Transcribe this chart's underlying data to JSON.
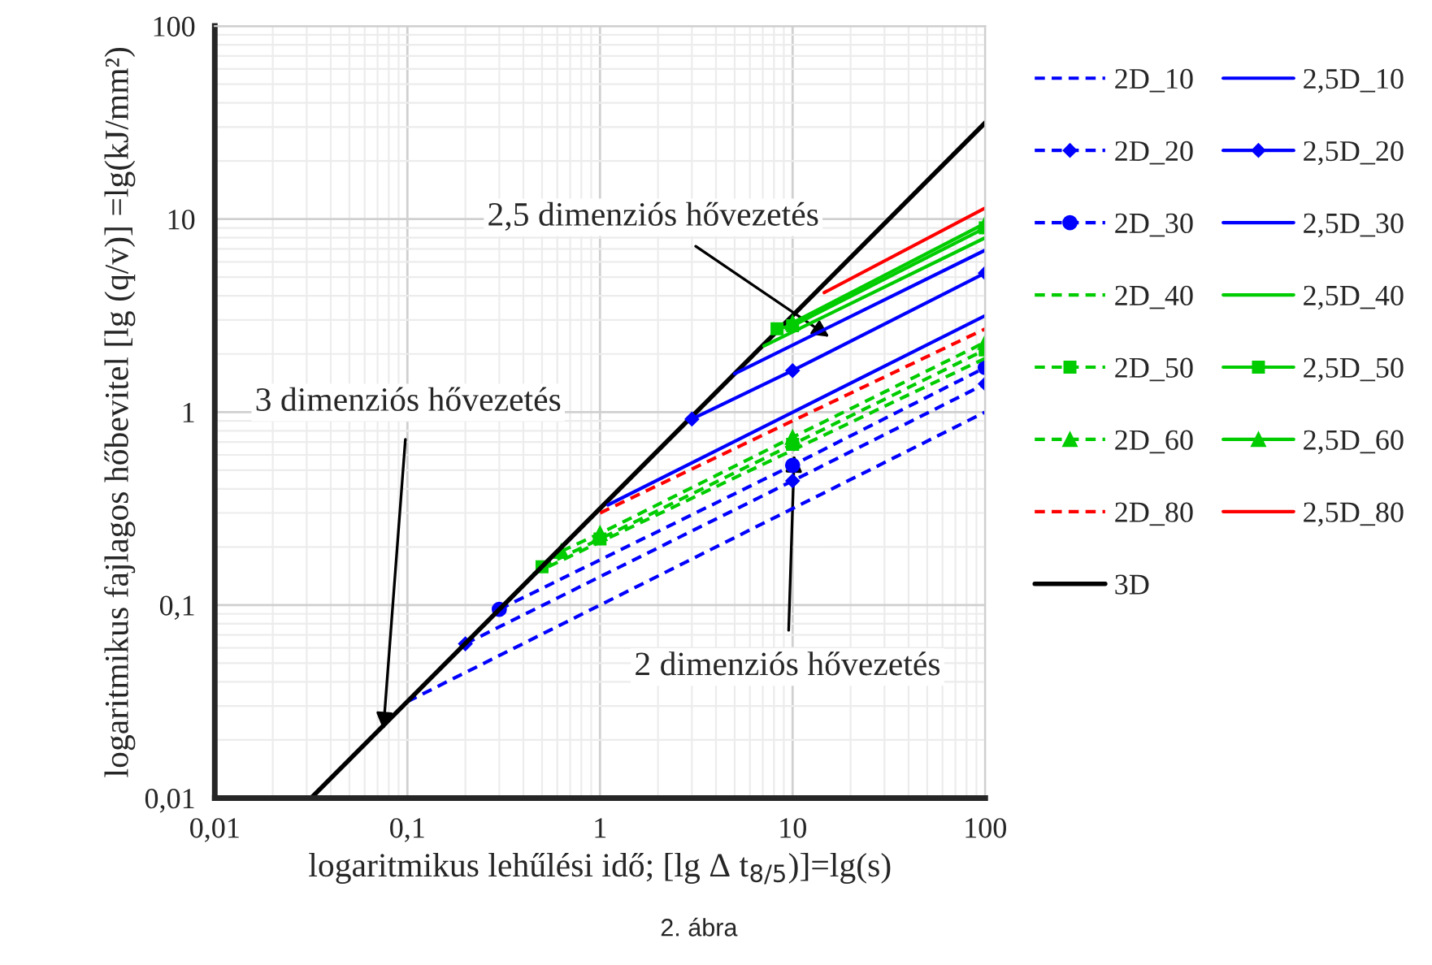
{
  "chart_data": {
    "type": "line",
    "xlabel": "logaritmikus lehűlési idő; [lg Δ t$_{8/5}$)]=lg(s)",
    "ylabel": "logaritmikus fajlagos hőbevitel [lg (q/v)] =lg(kJ/mm²)",
    "log": "xy",
    "grid": true,
    "legend": "right",
    "xlim": [
      0.01,
      100
    ],
    "ylim": [
      0.01,
      100
    ],
    "xticks": [
      {
        "value": 0.01,
        "label": "0,01"
      },
      {
        "value": 0.1,
        "label": "0,1"
      },
      1,
      10,
      100
    ],
    "yticks": [
      {
        "value": 0.01,
        "label": "0,01"
      },
      {
        "value": 0.1,
        "label": "0,1"
      },
      1,
      10,
      100
    ],
    "series": [
      {
        "name": "2D_10",
        "color": "#0000ff",
        "line_style": "dashed",
        "marker": "none",
        "x": [
          0.1,
          100
        ],
        "values": [
          0.0316,
          1.0
        ]
      },
      {
        "name": "2D_20",
        "color": "#0000ff",
        "line_style": "dashed",
        "marker": "diamond",
        "x": [
          0.2,
          10,
          100
        ],
        "values": [
          0.063,
          0.44,
          1.4
        ]
      },
      {
        "name": "2D_30",
        "color": "#0000ff",
        "line_style": "dashed",
        "marker": "circle",
        "x": [
          0.3,
          10,
          100
        ],
        "values": [
          0.095,
          0.53,
          1.7
        ]
      },
      {
        "name": "2D_40",
        "color": "#00cc00",
        "line_style": "dashed",
        "marker": "none",
        "x": [
          0.45,
          100
        ],
        "values": [
          0.145,
          1.9
        ]
      },
      {
        "name": "2D_50",
        "color": "#00cc00",
        "line_style": "dashed",
        "marker": "square",
        "x": [
          0.5,
          1,
          10,
          100
        ],
        "values": [
          0.158,
          0.22,
          0.68,
          2.1
        ]
      },
      {
        "name": "2D_60",
        "color": "#00cc00",
        "line_style": "dashed",
        "marker": "triangle",
        "x": [
          0.63,
          1,
          10,
          100
        ],
        "values": [
          0.19,
          0.235,
          0.74,
          2.3
        ]
      },
      {
        "name": "2D_80",
        "color": "#ff0000",
        "line_style": "dashed",
        "marker": "none",
        "x": [
          1,
          100
        ],
        "values": [
          0.3,
          2.7
        ]
      },
      {
        "name": "3D",
        "color": "#000000",
        "line_style": "solid",
        "marker": "none",
        "x": [
          0.0316,
          100
        ],
        "values": [
          0.01,
          31.6
        ]
      },
      {
        "name": "2,5D_10",
        "color": "#0000ff",
        "line_style": "solid",
        "marker": "none",
        "x": [
          1.1,
          100
        ],
        "values": [
          0.33,
          3.16
        ]
      },
      {
        "name": "2,5D_20",
        "color": "#0000ff",
        "line_style": "solid",
        "marker": "diamond",
        "x": [
          3,
          10,
          100
        ],
        "values": [
          0.92,
          1.64,
          5.25
        ]
      },
      {
        "name": "2,5D_30",
        "color": "#0000ff",
        "line_style": "solid",
        "marker": "none",
        "x": [
          5,
          100
        ],
        "values": [
          1.58,
          6.9
        ]
      },
      {
        "name": "2,5D_40",
        "color": "#00cc00",
        "line_style": "solid",
        "marker": "none",
        "x": [
          7.1,
          100
        ],
        "values": [
          2.2,
          8.0
        ]
      },
      {
        "name": "2,5D_50",
        "color": "#00cc00",
        "line_style": "solid",
        "marker": "square",
        "x": [
          8.3,
          10,
          100
        ],
        "values": [
          2.7,
          2.8,
          9.0
        ]
      },
      {
        "name": "2,5D_60",
        "color": "#00cc00",
        "line_style": "solid",
        "marker": "triangle",
        "x": [
          10,
          100
        ],
        "values": [
          2.9,
          9.5
        ]
      },
      {
        "name": "2,5D_80",
        "color": "#ff0000",
        "line_style": "solid",
        "marker": "none",
        "x": [
          14.6,
          100
        ],
        "values": [
          4.16,
          11.4
        ]
      }
    ],
    "annotations": [
      {
        "text": "2,5 dimenziós hővezetés",
        "x": 15.5,
        "y": 2.45
      },
      {
        "text": "3 dimenziós hővezetés",
        "x": 0.075,
        "y": 0.0226
      },
      {
        "text": "2 dimenziós hővezetés",
        "x": 10.2,
        "y": 0.6
      },
      "2. ábra"
    ]
  }
}
